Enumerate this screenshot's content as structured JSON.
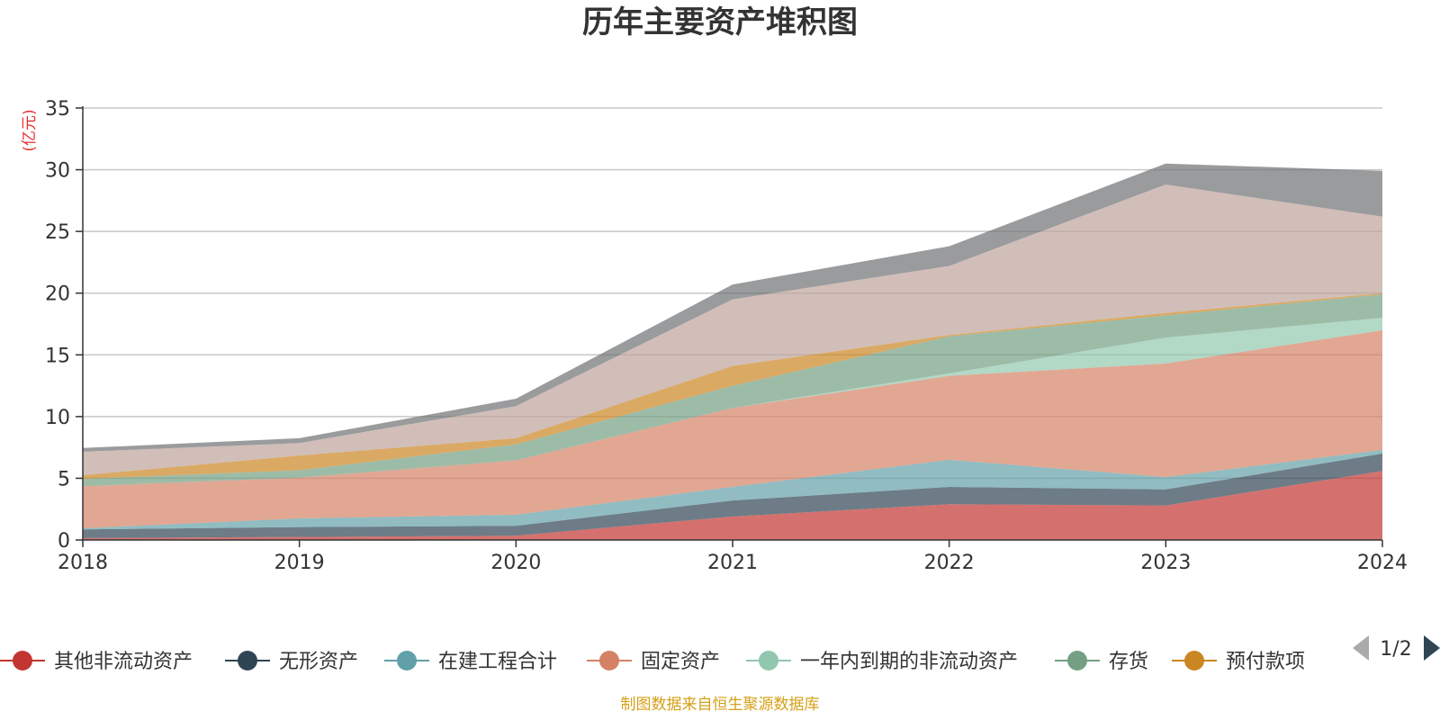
{
  "chart_data": {
    "type": "area",
    "stacked": true,
    "title": "历年主要资产堆积图",
    "ylabel": "(亿元)",
    "xlabel": "",
    "categories": [
      "2018",
      "2019",
      "2020",
      "2021",
      "2022",
      "2023",
      "2024"
    ],
    "ylim": [
      0,
      35
    ],
    "yticks": [
      0,
      5,
      10,
      15,
      20,
      25,
      30,
      35
    ],
    "grid": true,
    "legend_position": "bottom",
    "series": [
      {
        "name": "其他非流动资产",
        "color": "#c23531",
        "values": [
          0.15,
          0.25,
          0.35,
          1.9,
          2.9,
          2.8,
          5.6
        ]
      },
      {
        "name": "无形资产",
        "color": "#2f4554",
        "values": [
          0.7,
          0.8,
          0.8,
          1.3,
          1.4,
          1.3,
          1.4
        ]
      },
      {
        "name": "在建工程合计",
        "color": "#61a0a8",
        "values": [
          0.1,
          0.7,
          0.9,
          1.1,
          2.2,
          1.0,
          0.3
        ]
      },
      {
        "name": "固定资产",
        "color": "#d48265",
        "values": [
          3.4,
          3.3,
          4.4,
          6.4,
          6.8,
          9.2,
          9.7
        ]
      },
      {
        "name": "一年内到期的非流动资产",
        "color": "#91c7ae",
        "values": [
          0.0,
          0.0,
          0.0,
          0.0,
          0.2,
          2.1,
          1.0
        ]
      },
      {
        "name": "存货",
        "color": "#749f83",
        "values": [
          0.6,
          0.6,
          1.3,
          1.8,
          3.0,
          1.8,
          1.9
        ]
      },
      {
        "name": "预付款项",
        "color": "#ca8622",
        "values": [
          0.3,
          1.2,
          0.5,
          1.6,
          0.1,
          0.2,
          0.1
        ]
      },
      {
        "name": "",
        "color": "#bda29a",
        "values": [
          1.9,
          1.0,
          2.6,
          5.4,
          5.6,
          10.4,
          6.2
        ]
      },
      {
        "name": "",
        "color": "#6e7074",
        "values": [
          0.3,
          0.4,
          0.6,
          1.2,
          1.6,
          1.7,
          3.7
        ]
      }
    ]
  },
  "legend": {
    "page_indicator": "1/2"
  },
  "footer": {
    "source_text": "制图数据来自恒生聚源数据库"
  },
  "icons": {
    "prev": "triangle-left-icon",
    "next": "triangle-right-icon"
  }
}
